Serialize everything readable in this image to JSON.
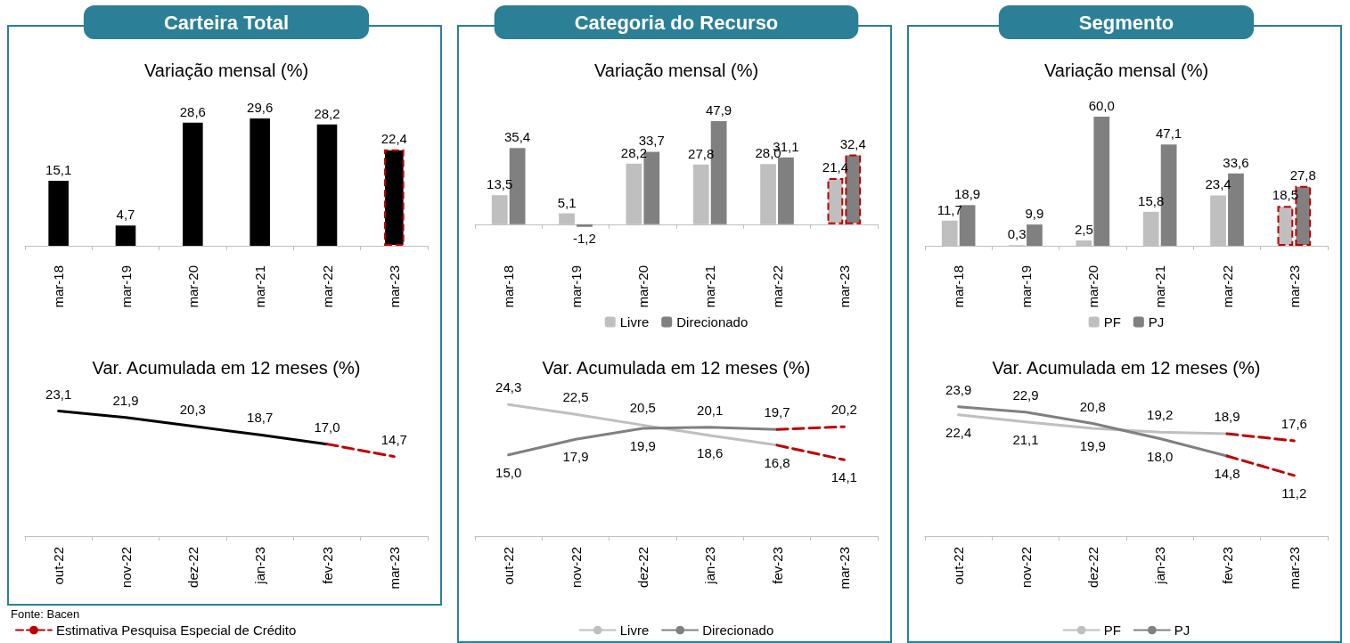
{
  "chart_data": [
    {
      "type": "bar",
      "title": "Carteira Total",
      "subtitle": "Variação mensal (%)",
      "categories": [
        "mar-18",
        "mar-19",
        "mar-20",
        "mar-21",
        "mar-22",
        "mar-23"
      ],
      "tick_labels": "x",
      "series": [
        {
          "color": "#000000",
          "values": [
            15.1,
            4.7,
            28.6,
            29.6,
            28.2,
            null
          ],
          "value_labels": [
            "15,1",
            "4,7",
            "28,6",
            "29,6",
            "28,2",
            null
          ]
        },
        {
          "color": "#000000",
          "line_style": "dashed",
          "values": [
            null,
            null,
            null,
            null,
            null,
            22.4
          ],
          "value_labels": [
            null,
            null,
            null,
            null,
            null,
            "22,4"
          ]
        }
      ]
    },
    {
      "type": "line",
      "title": "Var. Acumulada em 12 meses (%)",
      "categories": [
        "out-22",
        "nov-22",
        "dez-22",
        "jan-23",
        "fev-23",
        "mar-23"
      ],
      "tick_labels": "x",
      "marker": "none",
      "legend": "bottom left",
      "annotations": [
        "Fonte: Bacen"
      ],
      "series": [
        {
          "color": "#000000",
          "values": [
            23.1,
            21.9,
            20.3,
            18.7,
            17.0,
            null
          ],
          "value_labels": [
            "23,1",
            "21,9",
            "20,3",
            "18,7",
            "17,0",
            null
          ]
        },
        {
          "name": "Estimativa Pesquisa Especial de Crédito",
          "color": "#c00000",
          "line_style": "dashed",
          "values": [
            null,
            null,
            null,
            null,
            17.0,
            14.7
          ],
          "value_labels": [
            null,
            null,
            null,
            null,
            null,
            "14,7"
          ]
        }
      ]
    },
    {
      "type": "bar",
      "title": "Categoria do Recurso",
      "subtitle": "Variação mensal (%)",
      "categories": [
        "mar-18",
        "mar-19",
        "mar-20",
        "mar-21",
        "mar-22",
        "mar-23"
      ],
      "tick_labels": "x",
      "legend": "bottom",
      "series": [
        {
          "name": "Livre",
          "color": "#bfbfbf",
          "values": [
            13.5,
            5.1,
            28.2,
            27.8,
            28.0,
            null
          ],
          "value_labels": [
            "13,5",
            "5,1",
            "28,2",
            "27,8",
            "28,0",
            null
          ]
        },
        {
          "name": "Direcionado",
          "color": "#808080",
          "values": [
            35.4,
            -1.2,
            33.7,
            47.9,
            31.1,
            null
          ],
          "value_labels": [
            "35,4",
            "-1,2",
            "33,7",
            "47,9",
            "31,1",
            null
          ]
        },
        {
          "color": "#bfbfbf",
          "line_style": "dashed",
          "values": [
            null,
            null,
            null,
            null,
            null,
            21.4
          ],
          "value_labels": [
            null,
            null,
            null,
            null,
            null,
            "21,4"
          ]
        },
        {
          "color": "#808080",
          "line_style": "dashed",
          "values": [
            null,
            null,
            null,
            null,
            null,
            32.4
          ],
          "value_labels": [
            null,
            null,
            null,
            null,
            null,
            "32,4"
          ]
        }
      ]
    },
    {
      "type": "line",
      "title": "Var. Acumulada em 12 meses (%)",
      "categories": [
        "out-22",
        "nov-22",
        "dez-22",
        "jan-23",
        "fev-23",
        "mar-23"
      ],
      "tick_labels": "x",
      "marker": "none",
      "legend": "bottom",
      "series": [
        {
          "name": "Livre",
          "color": "#bfbfbf",
          "values": [
            24.3,
            22.5,
            20.5,
            18.6,
            16.8,
            null
          ],
          "value_labels": [
            "24,3",
            "22,5",
            "20,5",
            "18,6",
            "16,8",
            null
          ]
        },
        {
          "name": "Direcionado",
          "color": "#808080",
          "values": [
            15.0,
            17.9,
            19.9,
            20.1,
            19.7,
            null
          ],
          "value_labels": [
            "15,0",
            "17,9",
            "19,9",
            "20,1",
            "19,7",
            null
          ]
        },
        {
          "color": "#c00000",
          "line_style": "dashed",
          "values": [
            null,
            null,
            null,
            null,
            16.8,
            14.1
          ],
          "value_labels": [
            null,
            null,
            null,
            null,
            null,
            "14,1"
          ]
        },
        {
          "color": "#c00000",
          "line_style": "dashed",
          "values": [
            null,
            null,
            null,
            null,
            19.7,
            20.2
          ],
          "value_labels": [
            null,
            null,
            null,
            null,
            null,
            "20,2"
          ]
        }
      ]
    },
    {
      "type": "bar",
      "title": "Segmento",
      "subtitle": "Variação mensal (%)",
      "categories": [
        "mar-18",
        "mar-19",
        "mar-20",
        "mar-21",
        "mar-22",
        "mar-23"
      ],
      "tick_labels": "x",
      "legend": "bottom",
      "series": [
        {
          "name": "PF",
          "color": "#bfbfbf",
          "values": [
            11.7,
            0.3,
            2.5,
            15.8,
            23.4,
            null
          ],
          "value_labels": [
            "11,7",
            "0,3",
            "2,5",
            "15,8",
            "23,4",
            null
          ]
        },
        {
          "name": "PJ",
          "color": "#808080",
          "values": [
            18.9,
            9.9,
            60.0,
            47.1,
            33.6,
            null
          ],
          "value_labels": [
            "18,9",
            "9,9",
            "60,0",
            "47,1",
            "33,6",
            null
          ]
        },
        {
          "color": "#bfbfbf",
          "line_style": "dashed",
          "values": [
            null,
            null,
            null,
            null,
            null,
            18.5
          ],
          "value_labels": [
            null,
            null,
            null,
            null,
            null,
            "18,5"
          ]
        },
        {
          "color": "#808080",
          "line_style": "dashed",
          "values": [
            null,
            null,
            null,
            null,
            null,
            27.8
          ],
          "value_labels": [
            null,
            null,
            null,
            null,
            null,
            "27,8"
          ]
        }
      ]
    },
    {
      "type": "line",
      "title": "Var. Acumulada em 12 meses (%)",
      "categories": [
        "out-22",
        "nov-22",
        "dez-22",
        "jan-23",
        "fev-23",
        "mar-23"
      ],
      "tick_labels": "x",
      "marker": "none",
      "legend": "bottom",
      "series": [
        {
          "name": "PF",
          "color": "#bfbfbf",
          "values": [
            22.4,
            21.1,
            19.9,
            19.2,
            18.9,
            null
          ],
          "value_labels": [
            "22,4",
            "21,1",
            "19,9",
            "19,2",
            "18,9",
            null
          ]
        },
        {
          "name": "PJ",
          "color": "#808080",
          "values": [
            23.9,
            22.9,
            20.8,
            18.0,
            14.8,
            null
          ],
          "value_labels": [
            "23,9",
            "22,9",
            "20,8",
            "18,0",
            "14,8",
            null
          ]
        },
        {
          "color": "#c00000",
          "line_style": "dashed",
          "values": [
            null,
            null,
            null,
            null,
            18.9,
            17.6
          ],
          "value_labels": [
            null,
            null,
            null,
            null,
            null,
            "17,6"
          ]
        },
        {
          "color": "#c00000",
          "line_style": "dashed",
          "values": [
            null,
            null,
            null,
            null,
            14.8,
            11.2
          ],
          "value_labels": [
            null,
            null,
            null,
            null,
            null,
            "11,2"
          ]
        }
      ]
    }
  ]
}
